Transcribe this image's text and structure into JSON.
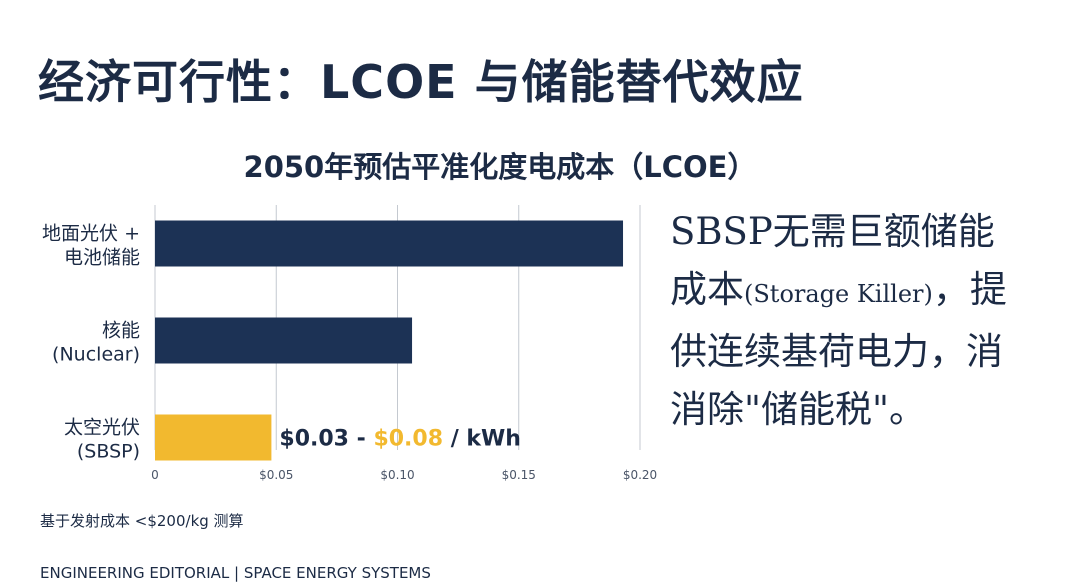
{
  "page": {
    "title": "经济可行性：LCOE 与储能替代效应",
    "footnote": "基于发射成本 <$200/kg 测算",
    "footer": "ENGINEERING EDITORIAL | SPACE ENERGY SYSTEMS"
  },
  "callout": {
    "line1": "SBSP无需巨额储能",
    "line2_main": "成本",
    "line2_small": "(Storage Killer)",
    "line2_tail": "，提",
    "line3": "供连续基荷电力，消",
    "line4": "消除\"储能税\"。"
  },
  "colors": {
    "navy": "#1c3255",
    "gold": "#f2b92f",
    "axis": "#c4c9d0"
  },
  "chart_data": {
    "type": "bar",
    "orientation": "horizontal",
    "title": "2050年预估平准化度电成本（LCOE）",
    "categories": [
      [
        "地面光伏 +",
        "电池储能"
      ],
      [
        "核能",
        "(Nuclear)"
      ],
      [
        "太空光伏",
        "(SBSP)"
      ]
    ],
    "values": [
      0.193,
      0.106,
      0.048
    ],
    "bar_colors": [
      "#1c3255",
      "#1c3255",
      "#f2b92f"
    ],
    "xlim": [
      0,
      0.2
    ],
    "ticks": [
      0,
      0.05,
      0.1,
      0.15,
      0.2
    ],
    "tick_labels": [
      "0",
      "$0.05",
      "$0.10",
      "$0.15",
      "$0.20"
    ],
    "grid": true,
    "annotation": {
      "low": "$0.03",
      "sep": " - ",
      "high": "$0.08",
      "unit": " / kWh"
    }
  }
}
